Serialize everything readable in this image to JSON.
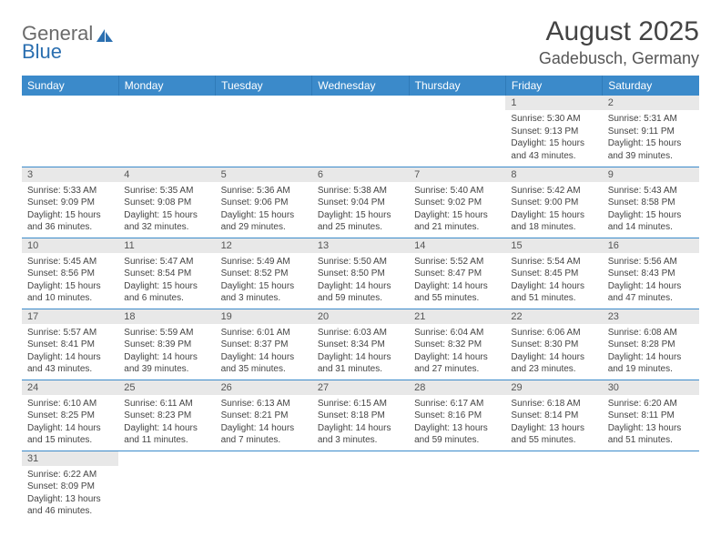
{
  "logo": {
    "general": "General",
    "blue": "Blue"
  },
  "title": "August 2025",
  "location": "Gadebusch, Germany",
  "headers": [
    "Sunday",
    "Monday",
    "Tuesday",
    "Wednesday",
    "Thursday",
    "Friday",
    "Saturday"
  ],
  "colors": {
    "header_bg": "#3b8aca",
    "header_text": "#ffffff",
    "daynum_bg": "#e8e8e8",
    "border": "#3b8aca",
    "text": "#444444"
  },
  "fonts": {
    "title_size": 30,
    "location_size": 18,
    "header_size": 12,
    "daynum_size": 11,
    "body_size": 10
  },
  "startOffset": 5,
  "days": [
    {
      "n": "1",
      "sr": "5:30 AM",
      "ss": "9:13 PM",
      "dl": "15 hours and 43 minutes."
    },
    {
      "n": "2",
      "sr": "5:31 AM",
      "ss": "9:11 PM",
      "dl": "15 hours and 39 minutes."
    },
    {
      "n": "3",
      "sr": "5:33 AM",
      "ss": "9:09 PM",
      "dl": "15 hours and 36 minutes."
    },
    {
      "n": "4",
      "sr": "5:35 AM",
      "ss": "9:08 PM",
      "dl": "15 hours and 32 minutes."
    },
    {
      "n": "5",
      "sr": "5:36 AM",
      "ss": "9:06 PM",
      "dl": "15 hours and 29 minutes."
    },
    {
      "n": "6",
      "sr": "5:38 AM",
      "ss": "9:04 PM",
      "dl": "15 hours and 25 minutes."
    },
    {
      "n": "7",
      "sr": "5:40 AM",
      "ss": "9:02 PM",
      "dl": "15 hours and 21 minutes."
    },
    {
      "n": "8",
      "sr": "5:42 AM",
      "ss": "9:00 PM",
      "dl": "15 hours and 18 minutes."
    },
    {
      "n": "9",
      "sr": "5:43 AM",
      "ss": "8:58 PM",
      "dl": "15 hours and 14 minutes."
    },
    {
      "n": "10",
      "sr": "5:45 AM",
      "ss": "8:56 PM",
      "dl": "15 hours and 10 minutes."
    },
    {
      "n": "11",
      "sr": "5:47 AM",
      "ss": "8:54 PM",
      "dl": "15 hours and 6 minutes."
    },
    {
      "n": "12",
      "sr": "5:49 AM",
      "ss": "8:52 PM",
      "dl": "15 hours and 3 minutes."
    },
    {
      "n": "13",
      "sr": "5:50 AM",
      "ss": "8:50 PM",
      "dl": "14 hours and 59 minutes."
    },
    {
      "n": "14",
      "sr": "5:52 AM",
      "ss": "8:47 PM",
      "dl": "14 hours and 55 minutes."
    },
    {
      "n": "15",
      "sr": "5:54 AM",
      "ss": "8:45 PM",
      "dl": "14 hours and 51 minutes."
    },
    {
      "n": "16",
      "sr": "5:56 AM",
      "ss": "8:43 PM",
      "dl": "14 hours and 47 minutes."
    },
    {
      "n": "17",
      "sr": "5:57 AM",
      "ss": "8:41 PM",
      "dl": "14 hours and 43 minutes."
    },
    {
      "n": "18",
      "sr": "5:59 AM",
      "ss": "8:39 PM",
      "dl": "14 hours and 39 minutes."
    },
    {
      "n": "19",
      "sr": "6:01 AM",
      "ss": "8:37 PM",
      "dl": "14 hours and 35 minutes."
    },
    {
      "n": "20",
      "sr": "6:03 AM",
      "ss": "8:34 PM",
      "dl": "14 hours and 31 minutes."
    },
    {
      "n": "21",
      "sr": "6:04 AM",
      "ss": "8:32 PM",
      "dl": "14 hours and 27 minutes."
    },
    {
      "n": "22",
      "sr": "6:06 AM",
      "ss": "8:30 PM",
      "dl": "14 hours and 23 minutes."
    },
    {
      "n": "23",
      "sr": "6:08 AM",
      "ss": "8:28 PM",
      "dl": "14 hours and 19 minutes."
    },
    {
      "n": "24",
      "sr": "6:10 AM",
      "ss": "8:25 PM",
      "dl": "14 hours and 15 minutes."
    },
    {
      "n": "25",
      "sr": "6:11 AM",
      "ss": "8:23 PM",
      "dl": "14 hours and 11 minutes."
    },
    {
      "n": "26",
      "sr": "6:13 AM",
      "ss": "8:21 PM",
      "dl": "14 hours and 7 minutes."
    },
    {
      "n": "27",
      "sr": "6:15 AM",
      "ss": "8:18 PM",
      "dl": "14 hours and 3 minutes."
    },
    {
      "n": "28",
      "sr": "6:17 AM",
      "ss": "8:16 PM",
      "dl": "13 hours and 59 minutes."
    },
    {
      "n": "29",
      "sr": "6:18 AM",
      "ss": "8:14 PM",
      "dl": "13 hours and 55 minutes."
    },
    {
      "n": "30",
      "sr": "6:20 AM",
      "ss": "8:11 PM",
      "dl": "13 hours and 51 minutes."
    },
    {
      "n": "31",
      "sr": "6:22 AM",
      "ss": "8:09 PM",
      "dl": "13 hours and 46 minutes."
    }
  ],
  "labels": {
    "sunrise": "Sunrise:",
    "sunset": "Sunset:",
    "daylight": "Daylight:"
  }
}
